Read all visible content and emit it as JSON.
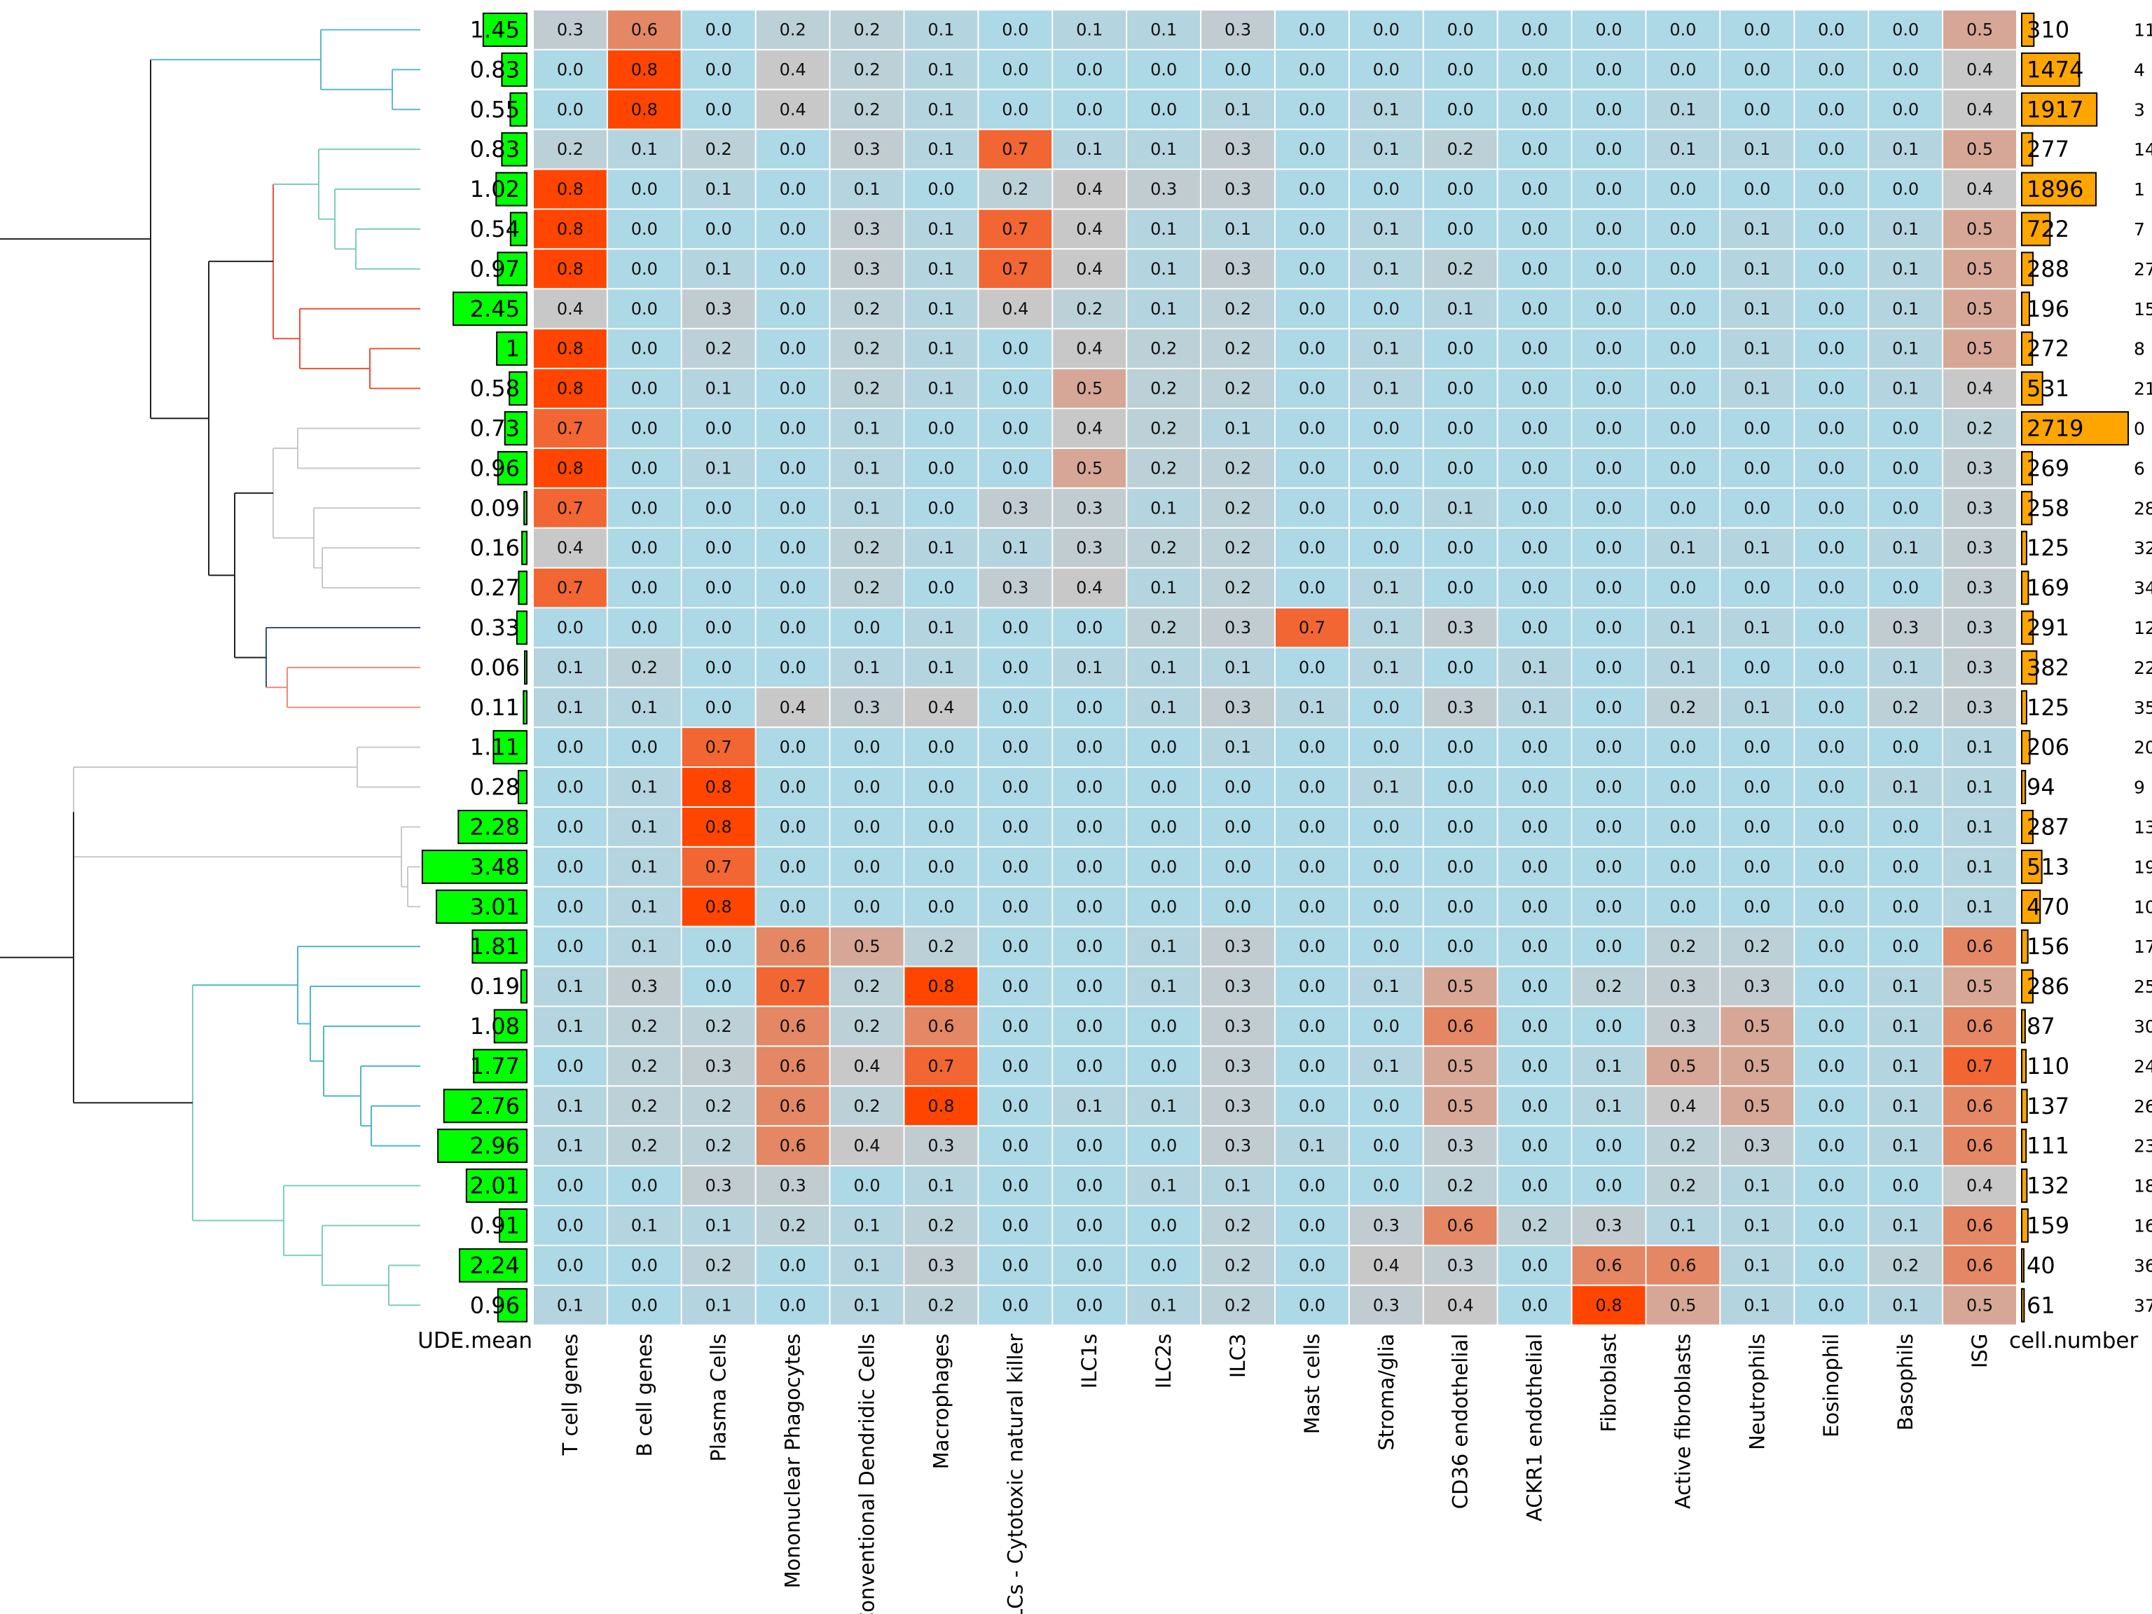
{
  "chart_data": {
    "type": "heatmap",
    "columns": [
      "T cell genes",
      "B cell genes",
      "Plasma Cells",
      "Mononuclear Phagocytes",
      "Conventional Dendridic Cells",
      "Macrophages",
      "ILCs - Cytotoxic natural killer",
      "ILC1s",
      "ILC2s",
      "ILC3",
      "Mast cells",
      "Stroma/glia",
      "CD36 endothelial",
      "ACKR1 endothelial",
      "Fibroblast",
      "Active fibroblasts",
      "Neutrophils",
      "Eosinophil",
      "Basophils",
      "ISG"
    ],
    "row_ids": [
      "11",
      "4",
      "3",
      "14",
      "1",
      "7",
      "27",
      "15",
      "8",
      "21",
      "0",
      "6",
      "28",
      "32",
      "34",
      "12",
      "22",
      "35",
      "20",
      "9",
      "13",
      "19",
      "10",
      "17",
      "25",
      "30",
      "24",
      "26",
      "23",
      "18",
      "16",
      "36",
      "37"
    ],
    "values": [
      [
        0.3,
        0.6,
        0.0,
        0.2,
        0.2,
        0.1,
        0.0,
        0.1,
        0.1,
        0.3,
        0.0,
        0.0,
        0.0,
        0.0,
        0.0,
        0.0,
        0.0,
        0.0,
        0.0,
        0.5
      ],
      [
        0.0,
        0.8,
        0.0,
        0.4,
        0.2,
        0.1,
        0.0,
        0.0,
        0.0,
        0.0,
        0.0,
        0.0,
        0.0,
        0.0,
        0.0,
        0.0,
        0.0,
        0.0,
        0.0,
        0.4
      ],
      [
        0.0,
        0.8,
        0.0,
        0.4,
        0.2,
        0.1,
        0.0,
        0.0,
        0.0,
        0.1,
        0.0,
        0.1,
        0.0,
        0.0,
        0.0,
        0.1,
        0.0,
        0.0,
        0.0,
        0.4
      ],
      [
        0.2,
        0.1,
        0.2,
        0.0,
        0.3,
        0.1,
        0.7,
        0.1,
        0.1,
        0.3,
        0.0,
        0.1,
        0.2,
        0.0,
        0.0,
        0.1,
        0.1,
        0.0,
        0.1,
        0.5
      ],
      [
        0.8,
        0.0,
        0.1,
        0.0,
        0.1,
        0.0,
        0.2,
        0.4,
        0.3,
        0.3,
        0.0,
        0.0,
        0.0,
        0.0,
        0.0,
        0.0,
        0.0,
        0.0,
        0.0,
        0.4
      ],
      [
        0.8,
        0.0,
        0.0,
        0.0,
        0.3,
        0.1,
        0.7,
        0.4,
        0.1,
        0.1,
        0.0,
        0.1,
        0.0,
        0.0,
        0.0,
        0.0,
        0.1,
        0.0,
        0.1,
        0.5
      ],
      [
        0.8,
        0.0,
        0.1,
        0.0,
        0.3,
        0.1,
        0.7,
        0.4,
        0.1,
        0.3,
        0.0,
        0.1,
        0.2,
        0.0,
        0.0,
        0.0,
        0.1,
        0.0,
        0.1,
        0.5
      ],
      [
        0.4,
        0.0,
        0.3,
        0.0,
        0.2,
        0.1,
        0.4,
        0.2,
        0.1,
        0.2,
        0.0,
        0.0,
        0.1,
        0.0,
        0.0,
        0.0,
        0.1,
        0.0,
        0.1,
        0.5
      ],
      [
        0.8,
        0.0,
        0.2,
        0.0,
        0.2,
        0.1,
        0.0,
        0.4,
        0.2,
        0.2,
        0.0,
        0.1,
        0.0,
        0.0,
        0.0,
        0.0,
        0.1,
        0.0,
        0.1,
        0.5
      ],
      [
        0.8,
        0.0,
        0.1,
        0.0,
        0.2,
        0.1,
        0.0,
        0.5,
        0.2,
        0.2,
        0.0,
        0.1,
        0.0,
        0.0,
        0.0,
        0.0,
        0.1,
        0.0,
        0.1,
        0.4
      ],
      [
        0.7,
        0.0,
        0.0,
        0.0,
        0.1,
        0.0,
        0.0,
        0.4,
        0.2,
        0.1,
        0.0,
        0.0,
        0.0,
        0.0,
        0.0,
        0.0,
        0.0,
        0.0,
        0.0,
        0.2
      ],
      [
        0.8,
        0.0,
        0.1,
        0.0,
        0.1,
        0.0,
        0.0,
        0.5,
        0.2,
        0.2,
        0.0,
        0.0,
        0.0,
        0.0,
        0.0,
        0.0,
        0.0,
        0.0,
        0.0,
        0.3
      ],
      [
        0.7,
        0.0,
        0.0,
        0.0,
        0.1,
        0.0,
        0.3,
        0.3,
        0.1,
        0.2,
        0.0,
        0.0,
        0.1,
        0.0,
        0.0,
        0.0,
        0.0,
        0.0,
        0.0,
        0.3
      ],
      [
        0.4,
        0.0,
        0.0,
        0.0,
        0.2,
        0.1,
        0.1,
        0.3,
        0.2,
        0.2,
        0.0,
        0.0,
        0.0,
        0.0,
        0.0,
        0.1,
        0.1,
        0.0,
        0.1,
        0.3
      ],
      [
        0.7,
        0.0,
        0.0,
        0.0,
        0.2,
        0.0,
        0.3,
        0.4,
        0.1,
        0.2,
        0.0,
        0.1,
        0.0,
        0.0,
        0.0,
        0.0,
        0.0,
        0.0,
        0.0,
        0.3
      ],
      [
        0.0,
        0.0,
        0.0,
        0.0,
        0.0,
        0.1,
        0.0,
        0.0,
        0.2,
        0.3,
        0.7,
        0.1,
        0.3,
        0.0,
        0.0,
        0.1,
        0.1,
        0.0,
        0.3,
        0.3
      ],
      [
        0.1,
        0.2,
        0.0,
        0.0,
        0.1,
        0.1,
        0.0,
        0.1,
        0.1,
        0.1,
        0.0,
        0.1,
        0.0,
        0.1,
        0.0,
        0.1,
        0.0,
        0.0,
        0.1,
        0.3
      ],
      [
        0.1,
        0.1,
        0.0,
        0.4,
        0.3,
        0.4,
        0.0,
        0.0,
        0.1,
        0.3,
        0.1,
        0.0,
        0.3,
        0.1,
        0.0,
        0.2,
        0.1,
        0.0,
        0.2,
        0.3
      ],
      [
        0.0,
        0.0,
        0.7,
        0.0,
        0.0,
        0.0,
        0.0,
        0.0,
        0.0,
        0.1,
        0.0,
        0.0,
        0.0,
        0.0,
        0.0,
        0.0,
        0.0,
        0.0,
        0.0,
        0.1
      ],
      [
        0.0,
        0.1,
        0.8,
        0.0,
        0.0,
        0.0,
        0.0,
        0.0,
        0.0,
        0.0,
        0.0,
        0.1,
        0.0,
        0.0,
        0.0,
        0.0,
        0.0,
        0.0,
        0.1,
        0.1
      ],
      [
        0.0,
        0.1,
        0.8,
        0.0,
        0.0,
        0.0,
        0.0,
        0.0,
        0.0,
        0.0,
        0.0,
        0.0,
        0.0,
        0.0,
        0.0,
        0.0,
        0.0,
        0.0,
        0.0,
        0.1
      ],
      [
        0.0,
        0.1,
        0.7,
        0.0,
        0.0,
        0.0,
        0.0,
        0.0,
        0.0,
        0.0,
        0.0,
        0.0,
        0.0,
        0.0,
        0.0,
        0.0,
        0.0,
        0.0,
        0.0,
        0.1
      ],
      [
        0.0,
        0.1,
        0.8,
        0.0,
        0.0,
        0.0,
        0.0,
        0.0,
        0.0,
        0.0,
        0.0,
        0.0,
        0.0,
        0.0,
        0.0,
        0.0,
        0.0,
        0.0,
        0.0,
        0.1
      ],
      [
        0.0,
        0.1,
        0.0,
        0.6,
        0.5,
        0.2,
        0.0,
        0.0,
        0.1,
        0.3,
        0.0,
        0.0,
        0.0,
        0.0,
        0.0,
        0.2,
        0.2,
        0.0,
        0.0,
        0.6
      ],
      [
        0.1,
        0.3,
        0.0,
        0.7,
        0.2,
        0.8,
        0.0,
        0.0,
        0.1,
        0.3,
        0.0,
        0.1,
        0.5,
        0.0,
        0.2,
        0.3,
        0.3,
        0.0,
        0.1,
        0.5
      ],
      [
        0.1,
        0.2,
        0.2,
        0.6,
        0.2,
        0.6,
        0.0,
        0.0,
        0.0,
        0.3,
        0.0,
        0.0,
        0.6,
        0.0,
        0.0,
        0.3,
        0.5,
        0.0,
        0.1,
        0.6
      ],
      [
        0.0,
        0.2,
        0.3,
        0.6,
        0.4,
        0.7,
        0.0,
        0.0,
        0.0,
        0.3,
        0.0,
        0.1,
        0.5,
        0.0,
        0.1,
        0.5,
        0.5,
        0.0,
        0.1,
        0.7
      ],
      [
        0.1,
        0.2,
        0.2,
        0.6,
        0.2,
        0.8,
        0.0,
        0.1,
        0.1,
        0.3,
        0.0,
        0.0,
        0.5,
        0.0,
        0.1,
        0.4,
        0.5,
        0.0,
        0.1,
        0.6
      ],
      [
        0.1,
        0.2,
        0.2,
        0.6,
        0.4,
        0.3,
        0.0,
        0.0,
        0.0,
        0.3,
        0.1,
        0.0,
        0.3,
        0.0,
        0.0,
        0.2,
        0.3,
        0.0,
        0.1,
        0.6
      ],
      [
        0.0,
        0.0,
        0.3,
        0.3,
        0.0,
        0.1,
        0.0,
        0.0,
        0.1,
        0.1,
        0.0,
        0.0,
        0.2,
        0.0,
        0.0,
        0.2,
        0.1,
        0.0,
        0.0,
        0.4
      ],
      [
        0.0,
        0.1,
        0.1,
        0.2,
        0.1,
        0.2,
        0.0,
        0.0,
        0.0,
        0.2,
        0.0,
        0.3,
        0.6,
        0.2,
        0.3,
        0.1,
        0.1,
        0.0,
        0.1,
        0.6
      ],
      [
        0.0,
        0.0,
        0.2,
        0.0,
        0.1,
        0.3,
        0.0,
        0.0,
        0.0,
        0.2,
        0.0,
        0.4,
        0.3,
        0.0,
        0.6,
        0.6,
        0.1,
        0.0,
        0.2,
        0.6
      ],
      [
        0.1,
        0.0,
        0.1,
        0.0,
        0.1,
        0.2,
        0.0,
        0.0,
        0.1,
        0.2,
        0.0,
        0.3,
        0.4,
        0.0,
        0.8,
        0.5,
        0.1,
        0.0,
        0.1,
        0.5
      ]
    ],
    "ude_mean": {
      "label": "UDE.mean",
      "values": [
        1.45,
        0.83,
        0.55,
        0.83,
        1.02,
        0.54,
        0.97,
        2.45,
        1,
        0.58,
        0.73,
        0.96,
        0.09,
        0.16,
        0.27,
        0.33,
        0.06,
        0.11,
        1.11,
        0.28,
        2.28,
        3.48,
        3.01,
        1.81,
        0.19,
        1.08,
        1.77,
        2.76,
        2.96,
        2.01,
        0.91,
        2.24,
        0.96
      ],
      "labels": [
        "1.45",
        "0.83",
        "0.55",
        "0.83",
        "1.02",
        "0.54",
        "0.97",
        "2.45",
        "1",
        "0.58",
        "0.73",
        "0.96",
        "0.09",
        "0.16",
        "0.27",
        "0.33",
        "0.06",
        "0.11",
        "1.11",
        "0.28",
        "2.28",
        "3.48",
        "3.01",
        "1.81",
        "0.19",
        "1.08",
        "1.77",
        "2.76",
        "2.96",
        "2.01",
        "0.91",
        "2.24",
        "0.96"
      ],
      "bar_color": "#00ff00",
      "max": 3.5
    },
    "cell_number": {
      "label": "cell.number",
      "values": [
        310,
        1474,
        1917,
        277,
        1896,
        722,
        288,
        196,
        272,
        531,
        2719,
        269,
        258,
        125,
        169,
        291,
        382,
        125,
        206,
        94,
        287,
        513,
        470,
        156,
        286,
        87,
        110,
        137,
        111,
        132,
        159,
        40,
        61
      ],
      "bar_color": "#ffa500",
      "max": 2719
    },
    "dendrogram": {
      "order_note": "",
      "cluster_colors": [
        "#5bb8c9",
        "#7fcdbb",
        "#e8523a",
        "#c8c8c8",
        "#3b4f7a",
        "#f08a74",
        "#c8c8c8",
        "#4db6c8",
        "#7fcdbb"
      ]
    },
    "color_scale": {
      "low": "#add8e6",
      "mid": "#c8c8c8",
      "high": "#ff4500",
      "range": [
        0,
        0.8
      ]
    },
    "title": "",
    "xlabel": "",
    "ylabel": ""
  }
}
